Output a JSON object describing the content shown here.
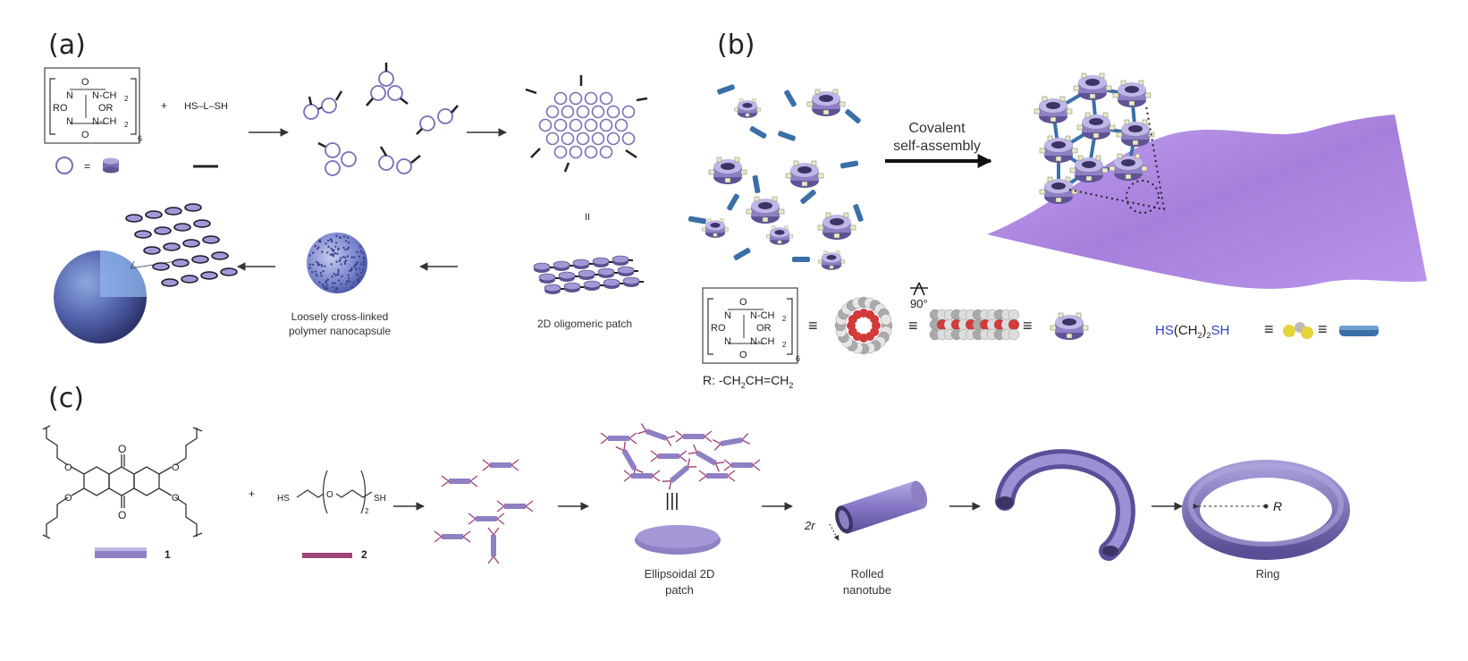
{
  "panels": {
    "a": {
      "letter": "(a)",
      "chem_lines": [
        "O",
        "N",
        "N-CH",
        "2",
        "RO",
        "OR",
        "N",
        "N-CH",
        "2",
        "O",
        "6"
      ],
      "plus": "+",
      "reagent": "HS–L–SH",
      "equiv_sign": "=",
      "caption_capsule": [
        "Loosely cross-linked",
        "polymer nanocapsule"
      ],
      "caption_patch": "2D oligomeric patch",
      "parallel_sign": "II"
    },
    "b": {
      "letter": "(b)",
      "arrow_label": [
        "Covalent",
        "self-assembly"
      ],
      "r_group": "R: -CH",
      "r_group_rest": [
        "2",
        "CH=CH",
        "2"
      ],
      "rotation": "90°",
      "thiol_parts": [
        "HS",
        "(CH",
        "2",
        ")",
        "2",
        "SH"
      ],
      "equiv_sign": "≡",
      "chem_lines": [
        "O",
        "N",
        "N-CH",
        "2",
        "RO",
        "OR",
        "N",
        "N-CH",
        "2",
        "O",
        "6"
      ]
    },
    "c": {
      "letter": "(c)",
      "plus": "+",
      "compound1_label": "1",
      "compound2_label": "2",
      "thiol_left": "HS",
      "thiol_right": "SH",
      "thiol_o": "O",
      "thiol_sub": "2",
      "carbonyl": "O",
      "ether_o": "O",
      "triple_bar": "|||",
      "caption_patch": [
        "Ellipsoidal 2D",
        "patch"
      ],
      "caption_tube": [
        "Rolled",
        "nanotube"
      ],
      "tube_radius": "2r",
      "caption_ring": "Ring",
      "ring_radius": "R"
    }
  },
  "colors": {
    "purple": "#8f80c4",
    "purple_dark": "#5f5396",
    "purple_light": "#c1b7e6",
    "sheet": "#b08fe0",
    "linker_blue": "#3a6fa8",
    "linker_magenta": "#a0457a",
    "oxygen_red": "#d33a3a"
  }
}
